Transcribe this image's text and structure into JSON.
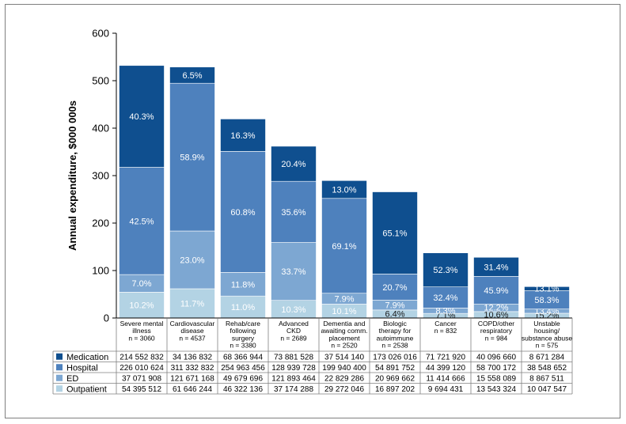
{
  "chart_data": {
    "type": "bar",
    "stacked": true,
    "ylabel": "Annual expenditure, $000 000s",
    "ylim": [
      0,
      600
    ],
    "yticks": [
      0,
      100,
      200,
      300,
      400,
      500,
      600
    ],
    "categories": [
      {
        "lines": [
          "Severe mental",
          "illness"
        ],
        "n": "n = 3060"
      },
      {
        "lines": [
          "Cardiovascular",
          "disease"
        ],
        "n": "n = 4537"
      },
      {
        "lines": [
          "Rehab/care",
          "following",
          "surgery"
        ],
        "n": "n = 3380"
      },
      {
        "lines": [
          "Advanced",
          "CKD"
        ],
        "n": "n = 2689"
      },
      {
        "lines": [
          "Dementia and",
          "awaiting comm.",
          "placement"
        ],
        "n": "n = 2520"
      },
      {
        "lines": [
          "Biologic",
          "therapy for",
          "autoimmune"
        ],
        "n": "n = 2538"
      },
      {
        "lines": [
          "Cancer"
        ],
        "n": "n = 832"
      },
      {
        "lines": [
          "COPD/other",
          "respiratory"
        ],
        "n": "n = 984"
      },
      {
        "lines": [
          "Unstable",
          "housing/",
          "substance abuse"
        ],
        "n": "n = 575"
      }
    ],
    "series": [
      {
        "name": "Outpatient",
        "color": "#b3d3e4",
        "values": [
          54.395512,
          61.646244,
          46.322136,
          37.174288,
          29.272046,
          16.897202,
          9.694431,
          13.543324,
          10.047547
        ],
        "table": [
          "54 395 512",
          "61 646 244",
          "46 322 136",
          "37 174 288",
          "29 272 046",
          "16 897 202",
          "9 694 431",
          "13 543 324",
          "10 047 547"
        ],
        "pct": [
          "10.2%",
          "11.7%",
          "11.0%",
          "10.3%",
          "10.1%",
          "6.4%",
          "7.1%",
          "10.6%",
          "15.2%"
        ]
      },
      {
        "name": "ED",
        "color": "#7da7d2",
        "values": [
          37.071908,
          121.671168,
          49.679696,
          121.893464,
          22.829286,
          20.969662,
          11.414666,
          15.558089,
          8.867511
        ],
        "table": [
          "37 071 908",
          "121 671 168",
          "49 679 696",
          "121 893 464",
          "22 829 286",
          "20 969 662",
          "11 414 666",
          "15 558 089",
          "8 867 511"
        ],
        "pct": [
          "7.0%",
          "23.0%",
          "11.8%",
          "33.7%",
          "7.9%",
          "7.9%",
          "8.3%",
          "12.2%",
          "13.4%"
        ]
      },
      {
        "name": "Hospital",
        "color": "#4e81bd",
        "values": [
          226.010624,
          311.332832,
          254.963456,
          128.939728,
          199.9404,
          54.891752,
          44.39912,
          58.700172,
          38.548652
        ],
        "table": [
          "226 010 624",
          "311 332 832",
          "254 963 456",
          "128 939 728",
          "199 940 400",
          "54 891 752",
          "44 399 120",
          "58 700 172",
          "38 548 652"
        ],
        "pct": [
          "42.5%",
          "58.9%",
          "60.8%",
          "35.6%",
          "69.1%",
          "20.7%",
          "32.4%",
          "45.9%",
          "58.3%"
        ]
      },
      {
        "name": "Medication",
        "color": "#0f4f8f",
        "values": [
          214.552832,
          34.136832,
          68.366944,
          73.881528,
          37.51414,
          173.026016,
          71.72192,
          40.09666,
          8.671284
        ],
        "table": [
          "214 552 832",
          "34 136 832",
          "68 366 944",
          "73 881 528",
          "37 514 140",
          "173 026 016",
          "71 721 920",
          "40 096 660",
          "8 671 284"
        ],
        "pct": [
          "40.3%",
          "6.5%",
          "16.3%",
          "20.4%",
          "13.0%",
          "65.1%",
          "52.3%",
          "31.4%",
          "13.1%"
        ]
      }
    ],
    "legend_order": [
      "Medication",
      "Hospital",
      "ED",
      "Outpatient"
    ],
    "legend_placement": "table-left"
  }
}
